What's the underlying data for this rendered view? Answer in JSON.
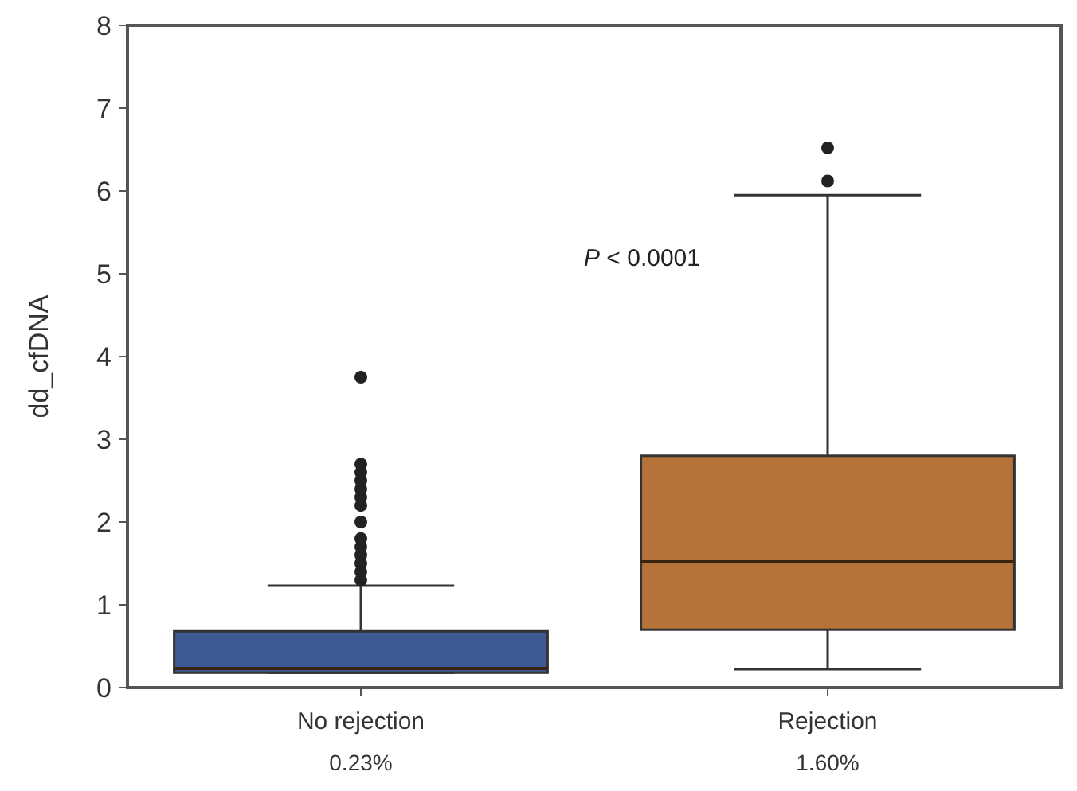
{
  "chart_data": {
    "type": "box",
    "ylabel": "dd_cfDNA",
    "categories": [
      "No rejection",
      "Rejection"
    ],
    "colors": [
      "#3e5a94",
      "#b5733a"
    ],
    "boxes": [
      {
        "low": 0.18,
        "q1": 0.18,
        "median": 0.23,
        "q3": 0.68,
        "high": 1.23,
        "outliers": [
          1.3,
          1.4,
          1.5,
          1.6,
          1.7,
          1.8,
          2.0,
          2.2,
          2.3,
          2.4,
          2.5,
          2.6,
          2.7,
          3.75
        ]
      },
      {
        "low": 0.22,
        "q1": 0.7,
        "median": 1.52,
        "q3": 2.8,
        "high": 5.95,
        "outliers": [
          6.12,
          6.52
        ]
      }
    ],
    "ylim": [
      0,
      8
    ],
    "yticks": [
      0,
      1,
      2,
      3,
      4,
      5,
      6,
      7,
      8
    ],
    "grid": false,
    "annotations": [
      "P < 0.0001",
      "0.23%",
      "1.60%"
    ]
  }
}
